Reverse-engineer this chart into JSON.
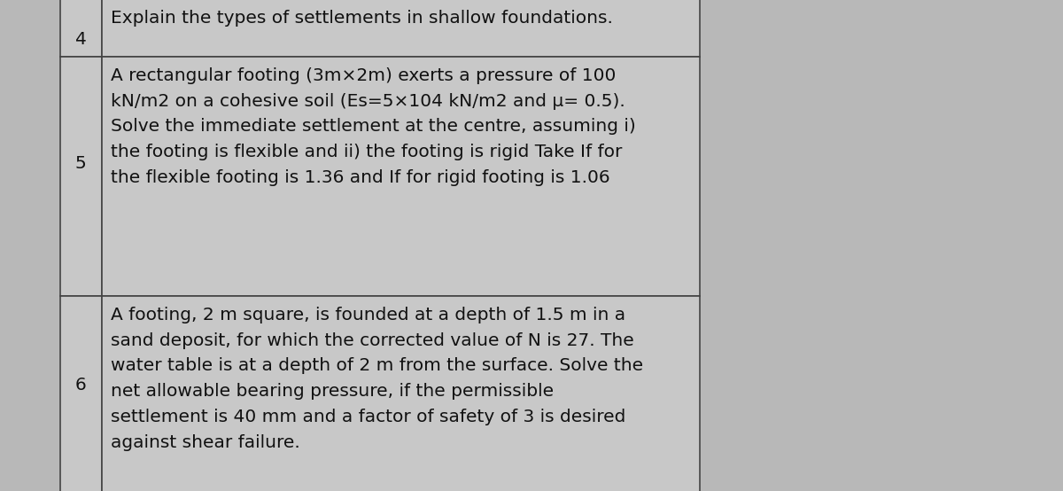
{
  "bg_color": "#b8b8b8",
  "cell_bg": "#c8c8c8",
  "border_color": "#444444",
  "text_color": "#111111",
  "top_text": "Explain the types of settlements in shallow foundations.",
  "row4_number": "4",
  "row5_number": "5",
  "row5_text": "A rectangular footing (3m×2m) exerts a pressure of 100\nkN/m2 on a cohesive soil (Es=5×104 kN/m2 and μ= 0.5).\nSolve the immediate settlement at the centre, assuming i)\nthe footing is flexible and ii) the footing is rigid Take If for\nthe flexible footing is 1.36 and If for rigid footing is 1.06",
  "row6_number": "6",
  "row6_text": "A footing, 2 m square, is founded at a depth of 1.5 m in a\nsand deposit, for which the corrected value of N is 27. The\nwater table is at a depth of 2 m from the surface. Solve the\nnet allowable bearing pressure, if the permissible\nsettlement is 40 mm and a factor of safety of 3 is desired\nagainst shear failure.",
  "font_size": 14.5,
  "num_font_size": 14.5,
  "fig_width": 12.0,
  "fig_height": 5.54,
  "dpi": 100
}
